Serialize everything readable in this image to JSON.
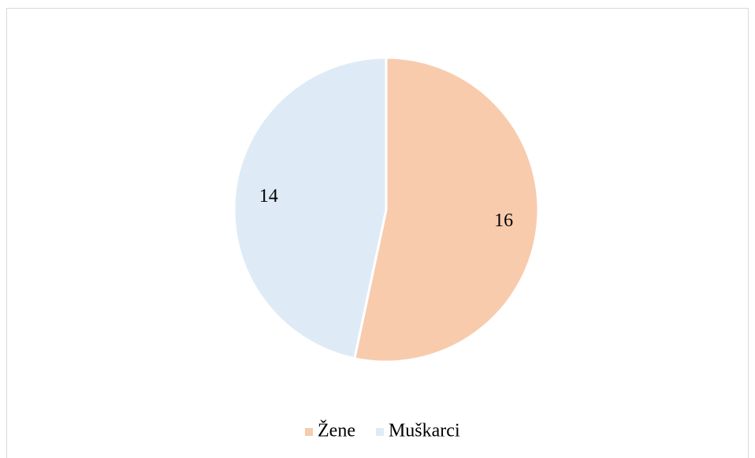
{
  "chart_data": {
    "type": "pie",
    "categories": [
      "Žene",
      "Muškarci"
    ],
    "values": [
      16,
      14
    ],
    "colors": [
      "#f8cbad",
      "#deebf7"
    ]
  }
}
